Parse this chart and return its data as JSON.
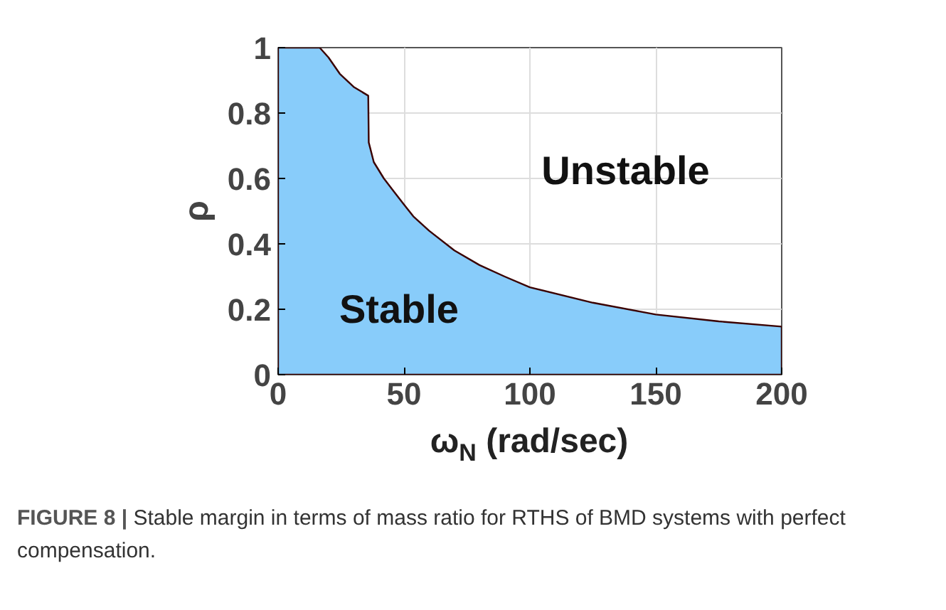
{
  "chart_data": {
    "type": "area",
    "x": [
      0,
      16.5,
      20,
      24.5,
      30,
      35.8,
      36,
      38,
      42,
      46,
      50,
      53.7,
      60,
      70,
      80,
      90,
      100,
      125,
      150,
      175,
      200
    ],
    "series": [
      {
        "color": "#88ccfa",
        "values": [
          1,
          1,
          0.97,
          0.92,
          0.88,
          0.853,
          0.71,
          0.65,
          0.6,
          0.56,
          0.52,
          0.484,
          0.44,
          0.38,
          0.335,
          0.3,
          0.267,
          0.22,
          0.184,
          0.163,
          0.147
        ]
      }
    ],
    "xlim": [
      0,
      200
    ],
    "xticks": [
      0,
      50,
      100,
      150,
      200
    ],
    "ylim": [
      0,
      1
    ],
    "yticks": [
      0,
      0.2,
      0.4,
      0.6,
      0.8,
      1
    ],
    "xlabel": "ω$_{N}$ (rad/sec)",
    "ylabel": "ρ",
    "grid": true,
    "annotations": [
      "Stable",
      "Unstable",
      "FIGURE 8 | Stable margin in terms of mass ratio for RTHS of BMD systems with perfect compensation."
    ]
  }
}
